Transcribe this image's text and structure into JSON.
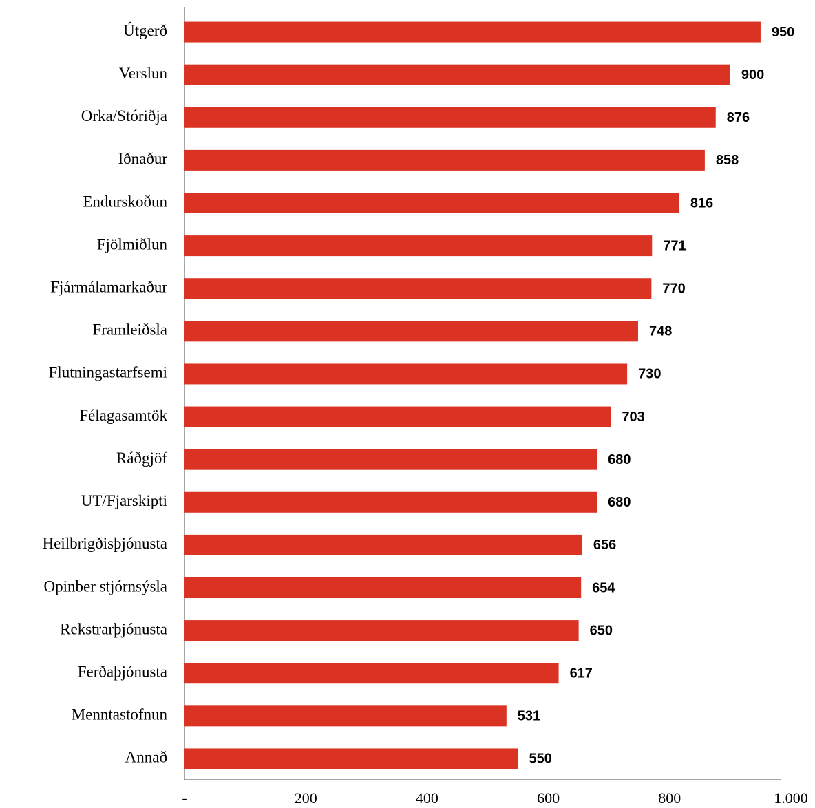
{
  "chart_data": {
    "type": "barh",
    "categories": [
      "Útgerð",
      "Verslun",
      "Orka/Stóriðja",
      "Iðnaður",
      "Endurskoðun",
      "Fjölmiðlun",
      "Fjármálamarkaður",
      "Framleiðsla",
      "Flutningastarfsemi",
      "Félagasamtök",
      "Ráðgjöf",
      "UT/Fjarskipti",
      "Heilbrigðisþjónusta",
      "Opinber stjórnsýsla",
      "Rekstrarþjónusta",
      "Ferðaþjónusta",
      "Menntastofnun",
      "Annað"
    ],
    "values": [
      950,
      900,
      876,
      858,
      816,
      771,
      770,
      748,
      730,
      703,
      680,
      680,
      656,
      654,
      650,
      617,
      531,
      550
    ],
    "color": "#da3323",
    "xlim": [
      0,
      1000
    ],
    "xticks": [
      {
        "value": 0,
        "label": "-"
      },
      200,
      400,
      600,
      800,
      {
        "value": 1000,
        "label": "1.000"
      }
    ]
  }
}
